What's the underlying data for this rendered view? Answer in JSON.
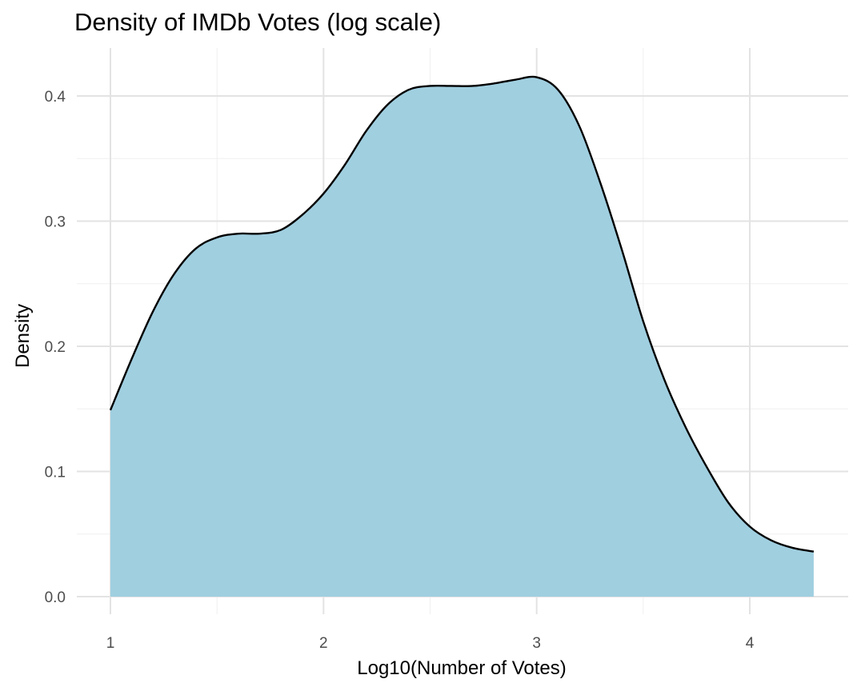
{
  "chart_data": {
    "type": "area",
    "title": "Density of IMDb Votes (log scale)",
    "xlabel": "Log10(Number of Votes)",
    "ylabel": "Density",
    "xlim": [
      0.85,
      4.45
    ],
    "ylim": [
      -0.0,
      0.43
    ],
    "x_ticks": [
      1,
      2,
      3,
      4
    ],
    "y_ticks": [
      0.0,
      0.1,
      0.2,
      0.3,
      0.4
    ],
    "x_tick_labels": [
      "1",
      "2",
      "3",
      "4"
    ],
    "y_tick_labels": [
      "0.0",
      "0.1",
      "0.2",
      "0.3",
      "0.4"
    ],
    "grid": true,
    "fill_color": "#A0CFE0",
    "line_color": "#000000",
    "series": [
      {
        "x": [
          1.0,
          1.1,
          1.2,
          1.3,
          1.4,
          1.5,
          1.6,
          1.7,
          1.8,
          1.9,
          2.0,
          2.1,
          2.2,
          2.3,
          2.4,
          2.5,
          2.6,
          2.7,
          2.8,
          2.9,
          3.0,
          3.1,
          3.2,
          3.3,
          3.4,
          3.5,
          3.6,
          3.7,
          3.8,
          3.9,
          4.0,
          4.1,
          4.2,
          4.3
        ],
        "y": [
          0.149,
          0.19,
          0.228,
          0.258,
          0.278,
          0.287,
          0.29,
          0.29,
          0.293,
          0.305,
          0.322,
          0.345,
          0.372,
          0.393,
          0.405,
          0.408,
          0.408,
          0.408,
          0.41,
          0.413,
          0.415,
          0.405,
          0.376,
          0.33,
          0.277,
          0.22,
          0.173,
          0.135,
          0.103,
          0.075,
          0.056,
          0.045,
          0.039,
          0.036
        ]
      }
    ]
  }
}
